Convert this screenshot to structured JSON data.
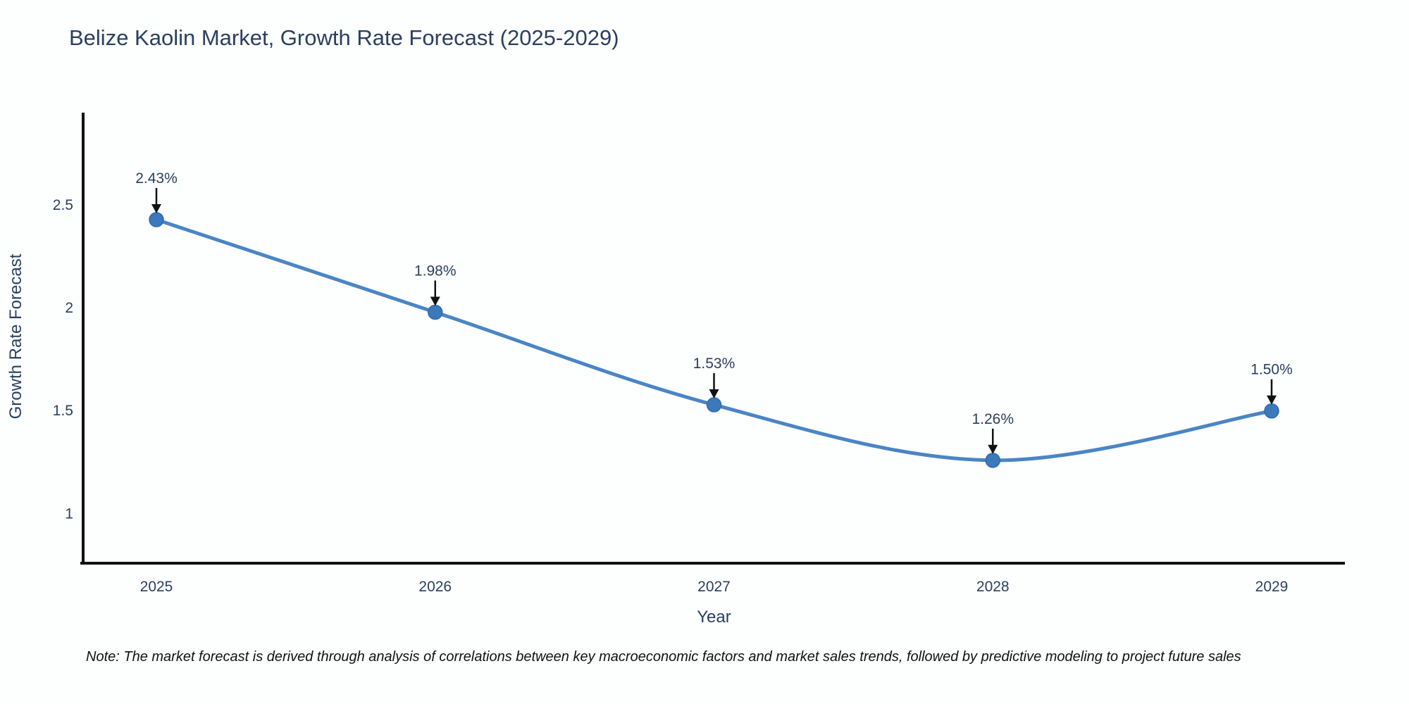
{
  "note": "Note: The market forecast is derived through analysis of correlations between key macroeconomic factors and market sales trends, followed by predictive modeling to project future sales",
  "chart_data": {
    "type": "line",
    "title": "Belize Kaolin Market, Growth Rate Forecast (2025-2029)",
    "categories": [
      "2025",
      "2026",
      "2027",
      "2028",
      "2029"
    ],
    "series": [
      {
        "name": "Growth Rate Forecast",
        "values": [
          2.43,
          1.98,
          1.53,
          1.26,
          1.5
        ]
      }
    ],
    "point_labels": [
      "2.43%",
      "1.98%",
      "1.53%",
      "1.26%",
      "1.50%"
    ],
    "xlabel": "Year",
    "ylabel": "Growth Rate Forecast",
    "y_ticks": [
      1,
      1.5,
      2,
      2.5
    ],
    "y_tick_labels": [
      "1",
      "1.5",
      "2",
      "2.5"
    ],
    "ylim": [
      0.76,
      2.95
    ],
    "grid": false,
    "legend": false,
    "line_shape": "spline",
    "colors": {
      "line": "#4a85c4",
      "marker_fill": "#3b79bb",
      "marker_stroke": "#2f6cae",
      "axis_line": "#111111",
      "text": "#2a3f5f",
      "annotation_arrow": "#111111"
    }
  }
}
